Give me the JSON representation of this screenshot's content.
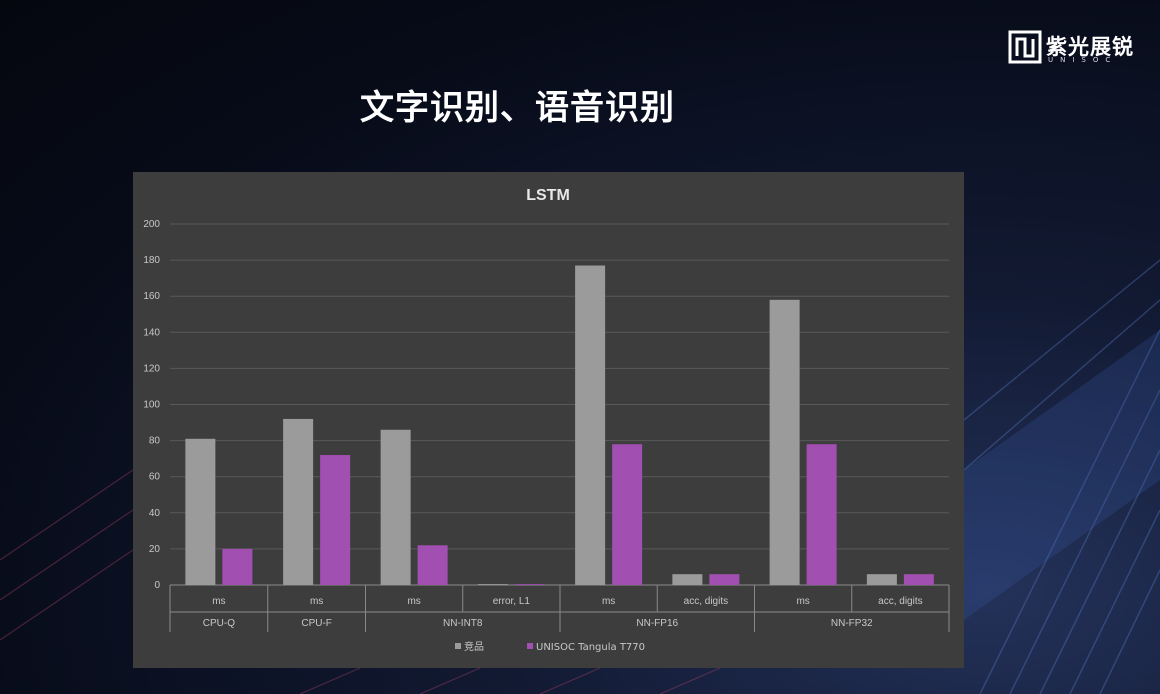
{
  "logo": {
    "name": "紫光展锐",
    "sub": "UNISOC"
  },
  "slide_title": "文字识别、语音识别",
  "colors": {
    "series_competitor": "#9b9b9b",
    "series_unisoc": "#a14fb0",
    "panel_bg": "#3d3d3e"
  },
  "chart_data": {
    "type": "bar",
    "title": "LSTM",
    "xlabel": "",
    "ylabel": "",
    "ylim": [
      0,
      200
    ],
    "yticks": [
      0,
      20,
      40,
      60,
      80,
      100,
      120,
      140,
      160,
      180,
      200
    ],
    "grid": true,
    "legend_position": "bottom",
    "categories": [
      "ms",
      "ms",
      "ms",
      "error, L1",
      "ms",
      "acc, digits",
      "ms",
      "acc, digits"
    ],
    "groups": [
      {
        "label": "CPU-Q",
        "span": 1
      },
      {
        "label": "CPU-F",
        "span": 1
      },
      {
        "label": "NN-INT8",
        "span": 2
      },
      {
        "label": "NN-FP16",
        "span": 2
      },
      {
        "label": "NN-FP32",
        "span": 2
      }
    ],
    "series": [
      {
        "name": "竞品",
        "color": "#9b9b9b",
        "values": [
          81,
          92,
          86,
          0.5,
          177,
          6,
          158,
          6
        ]
      },
      {
        "name": "UNISOC Tangula T770",
        "color": "#a14fb0",
        "values": [
          20,
          72,
          22,
          0.5,
          78,
          6,
          78,
          6
        ]
      }
    ]
  }
}
